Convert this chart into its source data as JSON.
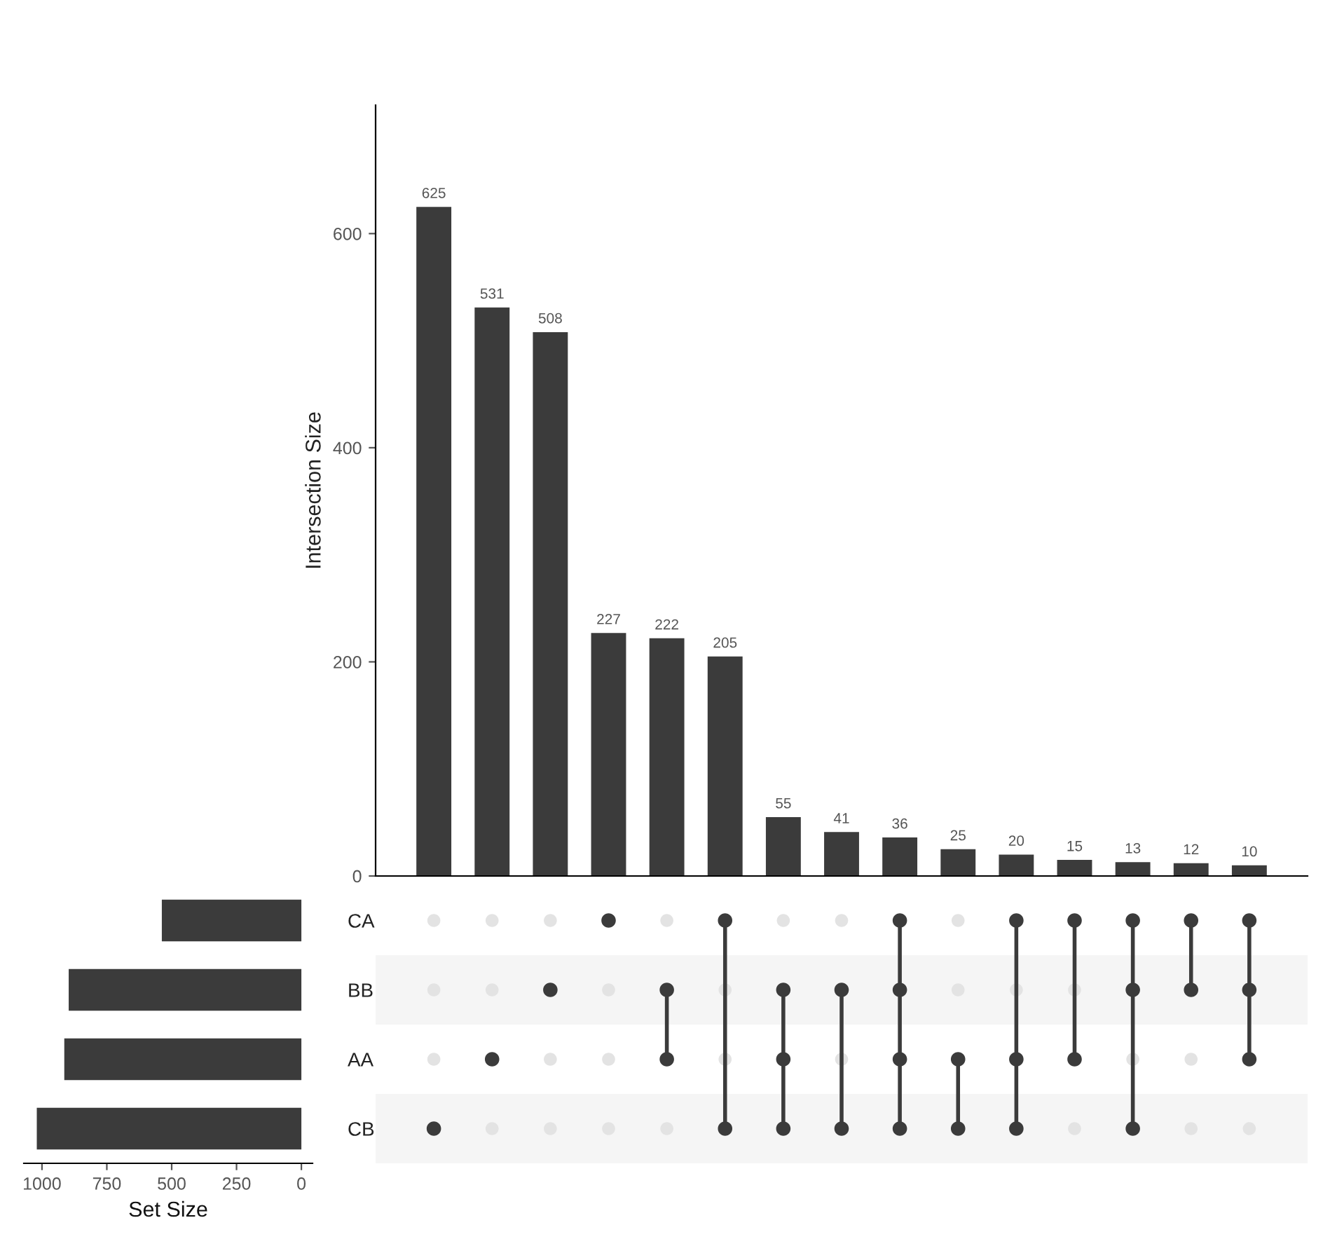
{
  "chart_data": [
    {
      "type": "bar",
      "ylabel": "Intersection Size",
      "categories": [
        null,
        null,
        null,
        null,
        null,
        null,
        null,
        null,
        null,
        null,
        null,
        null,
        null,
        null,
        null
      ],
      "series": [
        {
          "color": "#3b3b3b",
          "values": [
            625,
            531,
            508,
            227,
            222,
            205,
            55,
            41,
            36,
            25,
            20,
            15,
            13,
            12,
            10
          ]
        }
      ],
      "ylim": [
        0,
        720
      ],
      "yticks": [
        0,
        200,
        400,
        600
      ],
      "data_labels": true,
      "tick_labels": "y",
      "grid": false,
      "legend": false
    },
    {
      "type": "bar",
      "orientation": "horizontal",
      "xlabel": "Set Size",
      "categories": [
        "CA",
        "BB",
        "AA",
        "CB"
      ],
      "series": [
        {
          "color": "#3b3b3b",
          "values": [
            538,
            897,
            914,
            1020
          ]
        }
      ],
      "xlim": [
        1070,
        -43
      ],
      "xticks": [
        0,
        250,
        500,
        750,
        1000
      ],
      "grid": false,
      "legend": false
    }
  ]
}
